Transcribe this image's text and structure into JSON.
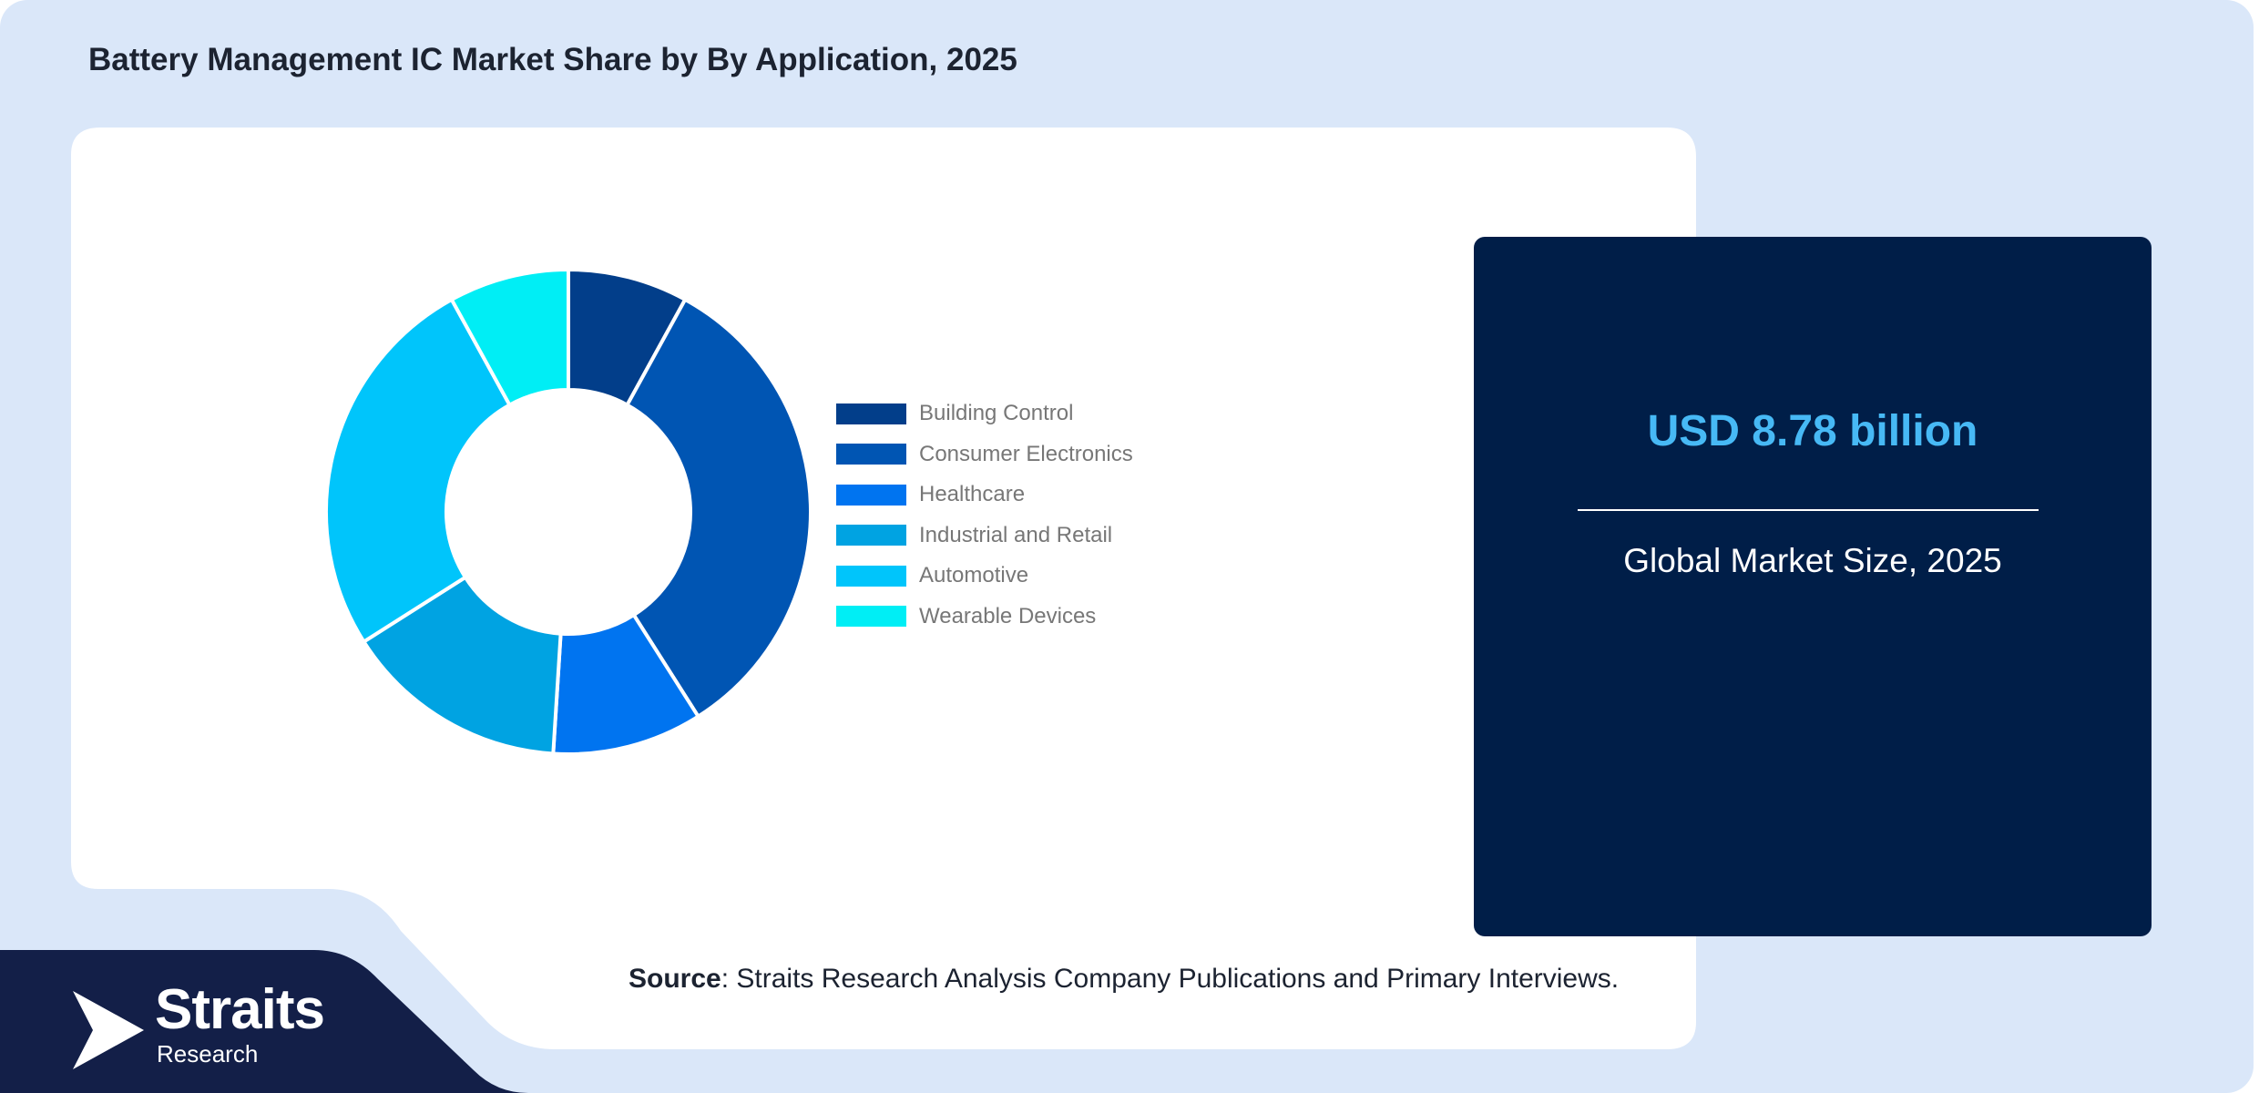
{
  "chart_data": {
    "type": "pie",
    "title": "Battery Management IC Market Share by By Application, 2025",
    "legend_position": "right",
    "categories": [
      "Building Control",
      "Consumer Electronics",
      "Healthcare",
      "Industrial and Retail",
      "Automotive",
      "Wearable Devices"
    ],
    "values": [
      8,
      33,
      10,
      15,
      26,
      8
    ],
    "colors": [
      "#023e8a",
      "#0055b3",
      "#0074f0",
      "#00a3e2",
      "#00c5fb",
      "#00eef5"
    ]
  },
  "market_card": {
    "value": "USD 8.78 billion",
    "label": "Global Market Size, 2025"
  },
  "source": {
    "label": "Source",
    "text": ": Straits Research Analysis Company Publications and Primary Interviews."
  },
  "logo": {
    "name": "Straits",
    "sub": "Research"
  }
}
